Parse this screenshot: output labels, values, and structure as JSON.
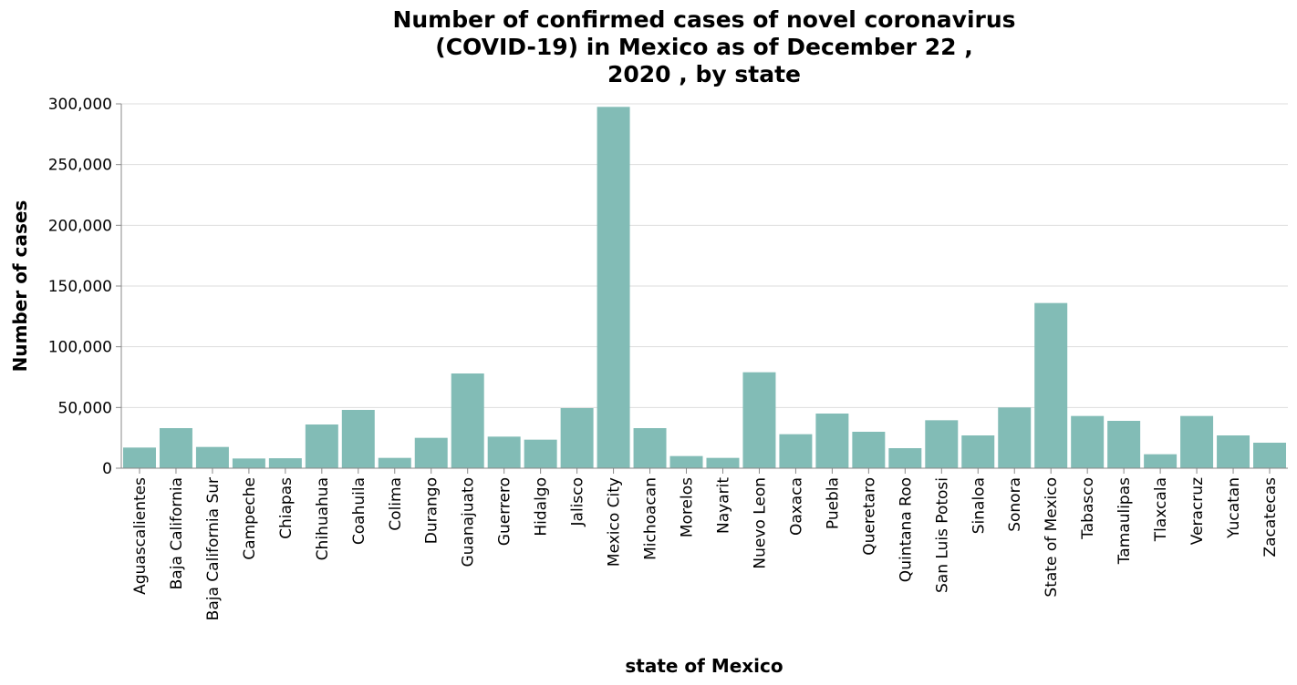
{
  "chart_data": {
    "type": "bar",
    "title_lines": [
      "Number of confirmed cases of novel coronavirus",
      "(COVID-19) in Mexico as of December 22 ,",
      "2020 , by state"
    ],
    "xlabel": "state of Mexico",
    "ylabel": "Number of cases",
    "ylim": [
      0,
      300000
    ],
    "yticks": [
      0,
      50000,
      100000,
      150000,
      200000,
      250000,
      300000
    ],
    "ytick_labels": [
      "0",
      "50,000",
      "100,000",
      "150,000",
      "200,000",
      "250,000",
      "300,000"
    ],
    "grid": true,
    "bar_color": "#82bcb6",
    "categories": [
      "Aguascalientes",
      "Baja California",
      "Baja California Sur",
      "Campeche",
      "Chiapas",
      "Chihuahua",
      "Coahuila",
      "Colima",
      "Durango",
      "Guanajuato",
      "Guerrero",
      "Hidalgo",
      "Jalisco",
      "Mexico City",
      "Michoacan",
      "Morelos",
      "Nayarit",
      "Nuevo Leon",
      "Oaxaca",
      "Puebla",
      "Queretaro",
      "Quintana Roo",
      "San Luis Potosi",
      "Sinaloa",
      "Sonora",
      "State of Mexico",
      "Tabasco",
      "Tamaulipas",
      "Tlaxcala",
      "Veracruz",
      "Yucatan",
      "Zacatecas"
    ],
    "values": [
      17000,
      33000,
      17500,
      8000,
      8200,
      36000,
      48000,
      8500,
      25000,
      78000,
      26000,
      23500,
      49500,
      297500,
      33000,
      10000,
      8500,
      79000,
      28000,
      45000,
      30000,
      16500,
      39500,
      27000,
      50000,
      136000,
      43000,
      39000,
      11500,
      43000,
      27000,
      21000
    ]
  }
}
